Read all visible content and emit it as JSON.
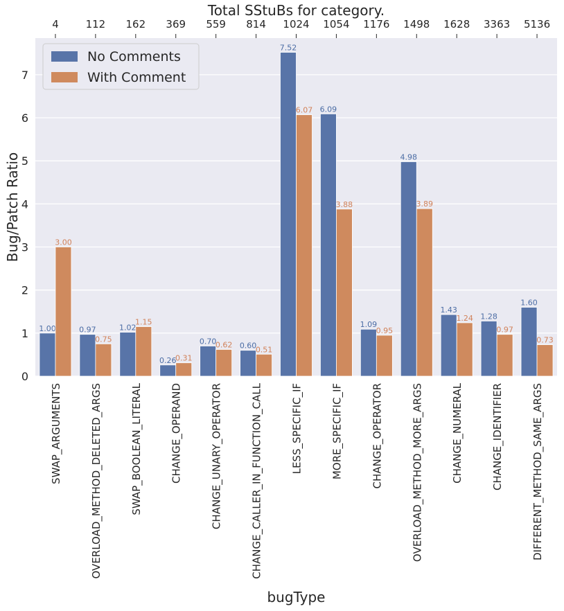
{
  "chart_data": {
    "type": "bar",
    "top_title": "Total SStuBs for category.",
    "xlabel": "bugType",
    "ylabel": "Bug/Patch Ratio",
    "ylim": [
      0,
      7.85
    ],
    "yticks": [
      0,
      1,
      2,
      3,
      4,
      5,
      6,
      7
    ],
    "legend_position": "top-left",
    "categories": [
      "SWAP_ARGUMENTS",
      "OVERLOAD_METHOD_DELETED_ARGS",
      "SWAP_BOOLEAN_LITERAL",
      "CHANGE_OPERAND",
      "CHANGE_UNARY_OPERATOR",
      "CHANGE_CALLER_IN_FUNCTION_CALL",
      "LESS_SPECIFIC_IF",
      "MORE_SPECIFIC_IF",
      "CHANGE_OPERATOR",
      "OVERLOAD_METHOD_MORE_ARGS",
      "CHANGE_NUMERAL",
      "CHANGE_IDENTIFIER",
      "DIFFERENT_METHOD_SAME_ARGS"
    ],
    "totals": [
      "4",
      "112",
      "162",
      "369",
      "559",
      "814",
      "1024",
      "1054",
      "1176",
      "1498",
      "1628",
      "3363",
      "5136"
    ],
    "series": [
      {
        "name": "No Comments",
        "color": "#5874a8",
        "label_color": "#4c6da5",
        "values": [
          1.0,
          0.97,
          1.02,
          0.26,
          0.7,
          0.6,
          7.52,
          6.09,
          1.09,
          4.98,
          1.43,
          1.28,
          1.6
        ],
        "labels": [
          "1.00",
          "0.97",
          "1.02",
          "0.26",
          "0.70",
          "0.60",
          "7.52",
          "6.09",
          "1.09",
          "4.98",
          "1.43",
          "1.28",
          "1.60"
        ]
      },
      {
        "name": "With Comment",
        "color": "#cf8a5e",
        "label_color": "#d1825a",
        "values": [
          3.0,
          0.75,
          1.15,
          0.31,
          0.62,
          0.51,
          6.07,
          3.88,
          0.95,
          3.89,
          1.24,
          0.97,
          0.73
        ],
        "labels": [
          "3.00",
          "0.75",
          "1.15",
          "0.31",
          "0.62",
          "0.51",
          "6.07",
          "3.88",
          "0.95",
          "3.89",
          "1.24",
          "0.97",
          "0.73"
        ]
      }
    ],
    "colors": {
      "plot_bg": "#eaeaf2",
      "grid": "#ffffff",
      "text": "#262626"
    }
  }
}
